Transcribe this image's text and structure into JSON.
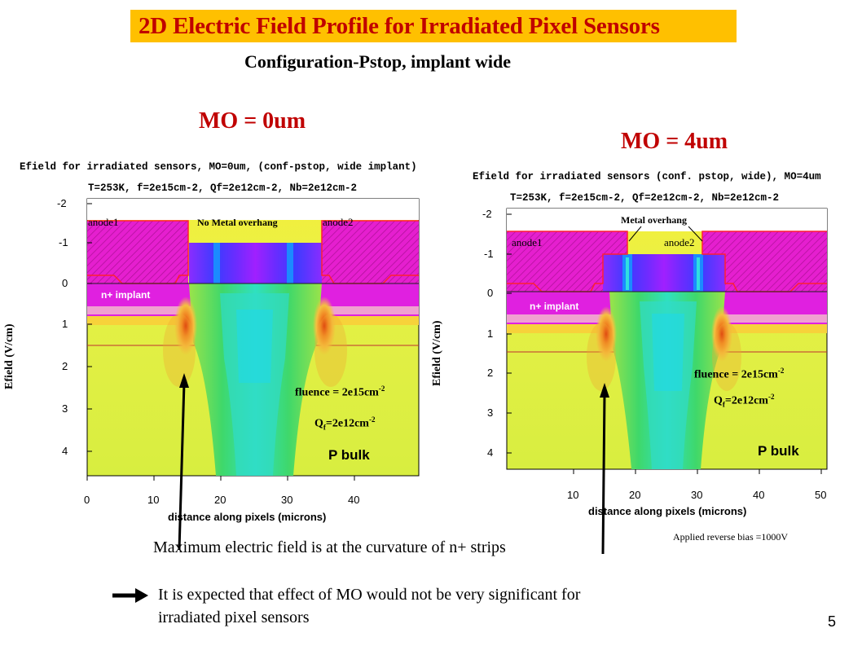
{
  "slide": {
    "title": "2D Electric Field Profile for Irradiated Pixel Sensors",
    "subtitle": "Configuration-Pstop, implant wide",
    "slide_number": "5",
    "colors": {
      "title_bg": "#ffc000",
      "title_text": "#c00000",
      "mo_text": "#c00000"
    }
  },
  "plots": [
    {
      "mo_label": "MO = 0um",
      "header_line1": "Efield for irradiated sensors, MO=0um, (conf-pstop, wide implant)",
      "header_line2": "T=253K, f=2e15cm-2, Qf=2e12cm-2, Nb=2e12cm-2",
      "y_axis_label": "Efield (V/cm)",
      "x_axis_label": "distance along pixels (microns)",
      "x_ticks": [
        "0",
        "10",
        "20",
        "30",
        "40"
      ],
      "y_ticks": [
        "-2",
        "-1",
        "0",
        "1",
        "2",
        "3",
        "4"
      ],
      "anode_left": "anode1",
      "anode_right": "anode2",
      "overhang_label": "No Metal overhang",
      "implant_label": "n+ implant",
      "fluence_label": "fluence = 2e15cm",
      "fluence_exp": "-2",
      "qf_label_main": "Q",
      "qf_label_sub": "f",
      "qf_label_rest": "=2e12cm",
      "qf_exp": "-2",
      "bulk_label": "P bulk"
    },
    {
      "mo_label": "MO = 4um",
      "header_line1": "Efield for irradiated sensors (conf. pstop, wide), MO=4um",
      "header_line2": "T=253K, f=2e15cm-2, Qf=2e12cm-2, Nb=2e12cm-2",
      "y_axis_label": "Efield (V/cm)",
      "x_axis_label": "distance along pixels (microns)",
      "x_ticks": [
        "10",
        "20",
        "30",
        "40",
        "50"
      ],
      "y_ticks": [
        "-2",
        "-1",
        "0",
        "1",
        "2",
        "3",
        "4"
      ],
      "anode_left": "anode1",
      "anode_right": "anode2",
      "overhang_label": "Metal overhang",
      "implant_label": "n+ implant",
      "fluence_label": "fluence = 2e15cm",
      "fluence_exp": "-2",
      "qf_label_main": "Q",
      "qf_label_sub": "f",
      "qf_label_rest": "=2e12cm",
      "qf_exp": "-2",
      "bulk_label": "P bulk",
      "bias_note": "Applied reverse bias =1000V"
    }
  ],
  "conclusion": {
    "max_field_note": "Maximum electric field is at the curvature of n+ strips",
    "expectation_line1": "It is expected that effect of MO would not be very significant for",
    "expectation_line2": "irradiated pixel sensors"
  }
}
